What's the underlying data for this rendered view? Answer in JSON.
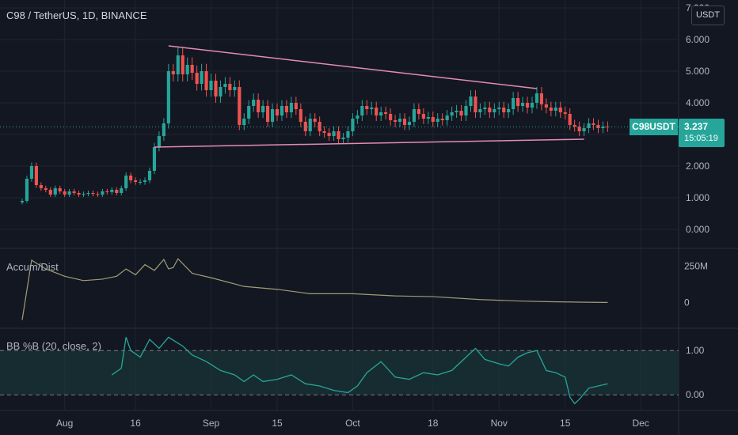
{
  "header": {
    "symbol_title": "C98 / TetherUS, 1D, BINANCE",
    "currency": "USDT"
  },
  "indicators": {
    "ad_label": "Accum/Dist",
    "bb_label": "BB %B (20, close, 2)"
  },
  "last_price": {
    "ticker": "C98USDT",
    "price": "3.237",
    "countdown": "15:05:19"
  },
  "colors": {
    "background": "#131722",
    "up": "#26a69a",
    "down": "#ef5350",
    "trendline": "#e38bb5",
    "ad_line": "#a09d77",
    "bb_line": "#26a69a",
    "bb_fill": "#1b3a3a",
    "grid": "#1f2430"
  },
  "chart_data": [
    {
      "type": "candlestick",
      "pane": "price",
      "title": "",
      "ylim": [
        0,
        7
      ],
      "y_ticks": [
        "0.000",
        "1.000",
        "2.000",
        "3.000",
        "4.000",
        "5.000",
        "6.000",
        "7.000"
      ],
      "x_ticks": [
        {
          "label": "Aug",
          "date": "2021-08-01"
        },
        {
          "label": "16",
          "date": "2021-08-16"
        },
        {
          "label": "Sep",
          "date": "2021-09-01"
        },
        {
          "label": "15",
          "date": "2021-09-15"
        },
        {
          "label": "Oct",
          "date": "2021-10-01"
        },
        {
          "label": "18",
          "date": "2021-10-18"
        },
        {
          "label": "Nov",
          "date": "2021-11-01"
        },
        {
          "label": "15",
          "date": "2021-11-15"
        },
        {
          "label": "Dec",
          "date": "2021-12-01"
        }
      ],
      "x_range": [
        "2021-07-23",
        "2021-12-05"
      ],
      "close_series": [
        [
          "2021-07-23",
          0.9
        ],
        [
          "2021-07-24",
          1.6
        ],
        [
          "2021-07-25",
          2.0
        ],
        [
          "2021-07-26",
          1.4
        ],
        [
          "2021-07-27",
          1.3
        ],
        [
          "2021-07-28",
          1.25
        ],
        [
          "2021-07-29",
          1.1
        ],
        [
          "2021-07-30",
          1.3
        ],
        [
          "2021-07-31",
          1.2
        ],
        [
          "2021-08-01",
          1.1
        ],
        [
          "2021-08-02",
          1.2
        ],
        [
          "2021-08-03",
          1.15
        ],
        [
          "2021-08-04",
          1.1
        ],
        [
          "2021-08-05",
          1.12
        ],
        [
          "2021-08-06",
          1.15
        ],
        [
          "2021-08-07",
          1.12
        ],
        [
          "2021-08-08",
          1.1
        ],
        [
          "2021-08-09",
          1.2
        ],
        [
          "2021-08-10",
          1.18
        ],
        [
          "2021-08-11",
          1.25
        ],
        [
          "2021-08-12",
          1.15
        ],
        [
          "2021-08-13",
          1.3
        ],
        [
          "2021-08-14",
          1.7
        ],
        [
          "2021-08-15",
          1.55
        ],
        [
          "2021-08-16",
          1.5
        ],
        [
          "2021-08-17",
          1.5
        ],
        [
          "2021-08-18",
          1.55
        ],
        [
          "2021-08-19",
          1.85
        ],
        [
          "2021-08-20",
          2.6
        ],
        [
          "2021-08-21",
          2.95
        ],
        [
          "2021-08-22",
          3.35
        ],
        [
          "2021-08-23",
          5.0
        ],
        [
          "2021-08-24",
          4.9
        ],
        [
          "2021-08-25",
          5.5
        ],
        [
          "2021-08-26",
          4.9
        ],
        [
          "2021-08-27",
          5.2
        ],
        [
          "2021-08-28",
          4.95
        ],
        [
          "2021-08-29",
          4.6
        ],
        [
          "2021-08-30",
          5.0
        ],
        [
          "2021-08-31",
          4.4
        ],
        [
          "2021-09-01",
          4.7
        ],
        [
          "2021-09-02",
          4.2
        ],
        [
          "2021-09-03",
          4.5
        ],
        [
          "2021-09-04",
          4.6
        ],
        [
          "2021-09-05",
          4.4
        ],
        [
          "2021-09-06",
          4.5
        ],
        [
          "2021-09-07",
          3.3
        ],
        [
          "2021-09-08",
          3.5
        ],
        [
          "2021-09-09",
          3.9
        ],
        [
          "2021-09-10",
          4.1
        ],
        [
          "2021-09-11",
          3.7
        ],
        [
          "2021-09-12",
          3.9
        ],
        [
          "2021-09-13",
          3.4
        ],
        [
          "2021-09-14",
          3.8
        ],
        [
          "2021-09-15",
          3.6
        ],
        [
          "2021-09-16",
          3.9
        ],
        [
          "2021-09-17",
          3.7
        ],
        [
          "2021-09-18",
          4.0
        ],
        [
          "2021-09-19",
          3.8
        ],
        [
          "2021-09-20",
          3.4
        ],
        [
          "2021-09-21",
          3.1
        ],
        [
          "2021-09-22",
          3.5
        ],
        [
          "2021-09-23",
          3.4
        ],
        [
          "2021-09-24",
          3.1
        ],
        [
          "2021-09-25",
          3.05
        ],
        [
          "2021-09-26",
          2.95
        ],
        [
          "2021-09-27",
          3.1
        ],
        [
          "2021-09-28",
          2.85
        ],
        [
          "2021-09-29",
          2.9
        ],
        [
          "2021-09-30",
          3.1
        ],
        [
          "2021-10-01",
          3.5
        ],
        [
          "2021-10-02",
          3.6
        ],
        [
          "2021-10-03",
          3.9
        ],
        [
          "2021-10-04",
          3.8
        ],
        [
          "2021-10-05",
          3.85
        ],
        [
          "2021-10-06",
          3.6
        ],
        [
          "2021-10-07",
          3.7
        ],
        [
          "2021-10-08",
          3.65
        ],
        [
          "2021-10-09",
          3.45
        ],
        [
          "2021-10-10",
          3.4
        ],
        [
          "2021-10-11",
          3.5
        ],
        [
          "2021-10-12",
          3.3
        ],
        [
          "2021-10-13",
          3.4
        ],
        [
          "2021-10-14",
          3.8
        ],
        [
          "2021-10-15",
          3.65
        ],
        [
          "2021-10-16",
          3.5
        ],
        [
          "2021-10-17",
          3.55
        ],
        [
          "2021-10-18",
          3.4
        ],
        [
          "2021-10-19",
          3.5
        ],
        [
          "2021-10-20",
          3.45
        ],
        [
          "2021-10-21",
          3.6
        ],
        [
          "2021-10-22",
          3.7
        ],
        [
          "2021-10-23",
          3.75
        ],
        [
          "2021-10-24",
          3.6
        ],
        [
          "2021-10-25",
          3.9
        ],
        [
          "2021-10-26",
          4.2
        ],
        [
          "2021-10-27",
          3.7
        ],
        [
          "2021-10-28",
          3.8
        ],
        [
          "2021-10-29",
          3.85
        ],
        [
          "2021-10-30",
          3.7
        ],
        [
          "2021-10-31",
          3.8
        ],
        [
          "2021-11-01",
          3.85
        ],
        [
          "2021-11-02",
          3.7
        ],
        [
          "2021-11-03",
          3.8
        ],
        [
          "2021-11-04",
          4.15
        ],
        [
          "2021-11-05",
          3.9
        ],
        [
          "2021-11-06",
          4.0
        ],
        [
          "2021-11-07",
          3.85
        ],
        [
          "2021-11-08",
          4.0
        ],
        [
          "2021-11-09",
          4.3
        ],
        [
          "2021-11-10",
          3.95
        ],
        [
          "2021-11-11",
          3.85
        ],
        [
          "2021-11-12",
          3.75
        ],
        [
          "2021-11-13",
          3.85
        ],
        [
          "2021-11-14",
          3.7
        ],
        [
          "2021-11-15",
          3.65
        ],
        [
          "2021-11-16",
          3.3
        ],
        [
          "2021-11-17",
          3.25
        ],
        [
          "2021-11-18",
          3.1
        ],
        [
          "2021-11-19",
          3.2
        ],
        [
          "2021-11-20",
          3.35
        ],
        [
          "2021-11-21",
          3.3
        ],
        [
          "2021-11-22",
          3.2
        ],
        [
          "2021-11-23",
          3.25
        ],
        [
          "2021-11-24",
          3.237
        ]
      ],
      "trendlines": [
        {
          "from": [
            "2021-08-23",
            5.8
          ],
          "to": [
            "2021-11-09",
            4.45
          ]
        },
        {
          "from": [
            "2021-08-20",
            2.6
          ],
          "to": [
            "2021-11-19",
            2.85
          ]
        }
      ],
      "last_price_line": 3.237
    },
    {
      "type": "line",
      "pane": "accum_dist",
      "title": "",
      "y_ticks": [
        {
          "label": "250M",
          "value": 250000000
        },
        {
          "label": "0",
          "value": 0
        }
      ],
      "ylim": [
        -150000000,
        350000000
      ],
      "x": [
        "2021-07-23",
        "2021-07-25",
        "2021-07-28",
        "2021-08-01",
        "2021-08-05",
        "2021-08-09",
        "2021-08-12",
        "2021-08-14",
        "2021-08-16",
        "2021-08-18",
        "2021-08-20",
        "2021-08-22",
        "2021-08-23",
        "2021-08-24",
        "2021-08-25",
        "2021-08-28",
        "2021-09-01",
        "2021-09-08",
        "2021-09-15",
        "2021-09-22",
        "2021-10-01",
        "2021-10-10",
        "2021-10-18",
        "2021-10-28",
        "2021-11-05",
        "2021-11-12",
        "2021-11-18",
        "2021-11-24"
      ],
      "values": [
        -120000000,
        290000000,
        230000000,
        180000000,
        150000000,
        160000000,
        180000000,
        230000000,
        190000000,
        260000000,
        220000000,
        295000000,
        230000000,
        240000000,
        300000000,
        200000000,
        170000000,
        110000000,
        90000000,
        60000000,
        60000000,
        45000000,
        40000000,
        20000000,
        10000000,
        5000000,
        2000000,
        0
      ]
    },
    {
      "type": "line",
      "pane": "bb_percent_b",
      "title": "",
      "y_ticks": [
        {
          "label": "1.00",
          "value": 1.0
        },
        {
          "label": "0.00",
          "value": 0.0
        }
      ],
      "ylim": [
        -0.3,
        1.45
      ],
      "band": [
        0,
        1
      ],
      "x": [
        "2021-08-11",
        "2021-08-13",
        "2021-08-14",
        "2021-08-15",
        "2021-08-17",
        "2021-08-19",
        "2021-08-21",
        "2021-08-23",
        "2021-08-26",
        "2021-08-28",
        "2021-08-31",
        "2021-09-03",
        "2021-09-06",
        "2021-09-08",
        "2021-09-10",
        "2021-09-12",
        "2021-09-15",
        "2021-09-18",
        "2021-09-21",
        "2021-09-24",
        "2021-09-27",
        "2021-09-30",
        "2021-10-02",
        "2021-10-04",
        "2021-10-07",
        "2021-10-10",
        "2021-10-13",
        "2021-10-16",
        "2021-10-19",
        "2021-10-22",
        "2021-10-25",
        "2021-10-27",
        "2021-10-29",
        "2021-11-01",
        "2021-11-03",
        "2021-11-05",
        "2021-11-07",
        "2021-11-09",
        "2021-11-11",
        "2021-11-13",
        "2021-11-15",
        "2021-11-16",
        "2021-11-17",
        "2021-11-18",
        "2021-11-20",
        "2021-11-24"
      ],
      "values": [
        0.45,
        0.6,
        1.3,
        1.0,
        0.85,
        1.25,
        1.05,
        1.3,
        1.1,
        0.9,
        0.75,
        0.55,
        0.45,
        0.3,
        0.45,
        0.3,
        0.35,
        0.45,
        0.25,
        0.2,
        0.1,
        0.05,
        0.2,
        0.5,
        0.75,
        0.4,
        0.35,
        0.5,
        0.45,
        0.55,
        0.85,
        1.05,
        0.8,
        0.7,
        0.65,
        0.85,
        0.95,
        1.0,
        0.55,
        0.5,
        0.4,
        -0.05,
        -0.2,
        -0.1,
        0.15,
        0.25
      ]
    }
  ]
}
